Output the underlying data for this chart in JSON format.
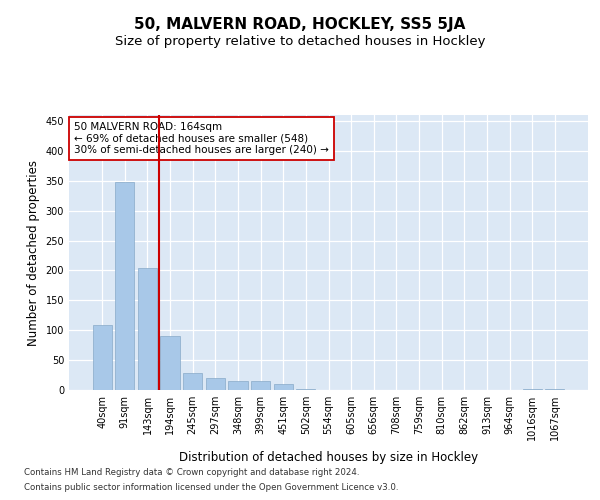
{
  "title": "50, MALVERN ROAD, HOCKLEY, SS5 5JA",
  "subtitle": "Size of property relative to detached houses in Hockley",
  "xlabel": "Distribution of detached houses by size in Hockley",
  "ylabel": "Number of detached properties",
  "categories": [
    "40sqm",
    "91sqm",
    "143sqm",
    "194sqm",
    "245sqm",
    "297sqm",
    "348sqm",
    "399sqm",
    "451sqm",
    "502sqm",
    "554sqm",
    "605sqm",
    "656sqm",
    "708sqm",
    "759sqm",
    "810sqm",
    "862sqm",
    "913sqm",
    "964sqm",
    "1016sqm",
    "1067sqm"
  ],
  "values": [
    108,
    348,
    204,
    90,
    28,
    20,
    15,
    15,
    10,
    2,
    0,
    0,
    0,
    0,
    0,
    0,
    0,
    0,
    0,
    2,
    2
  ],
  "bar_color": "#a8c8e8",
  "bar_edge_color": "#88aac8",
  "vline_x": 2.5,
  "vline_color": "#cc0000",
  "annotation_text": "50 MALVERN ROAD: 164sqm\n← 69% of detached houses are smaller (548)\n30% of semi-detached houses are larger (240) →",
  "annotation_box_color": "white",
  "annotation_box_edge": "#cc0000",
  "plot_bg_color": "#dce8f5",
  "ylim": [
    0,
    460
  ],
  "yticks": [
    0,
    50,
    100,
    150,
    200,
    250,
    300,
    350,
    400,
    450
  ],
  "footer_line1": "Contains HM Land Registry data © Crown copyright and database right 2024.",
  "footer_line2": "Contains public sector information licensed under the Open Government Licence v3.0.",
  "title_fontsize": 11,
  "subtitle_fontsize": 9.5,
  "label_fontsize": 8.5,
  "tick_fontsize": 7,
  "annotation_fontsize": 7.5
}
